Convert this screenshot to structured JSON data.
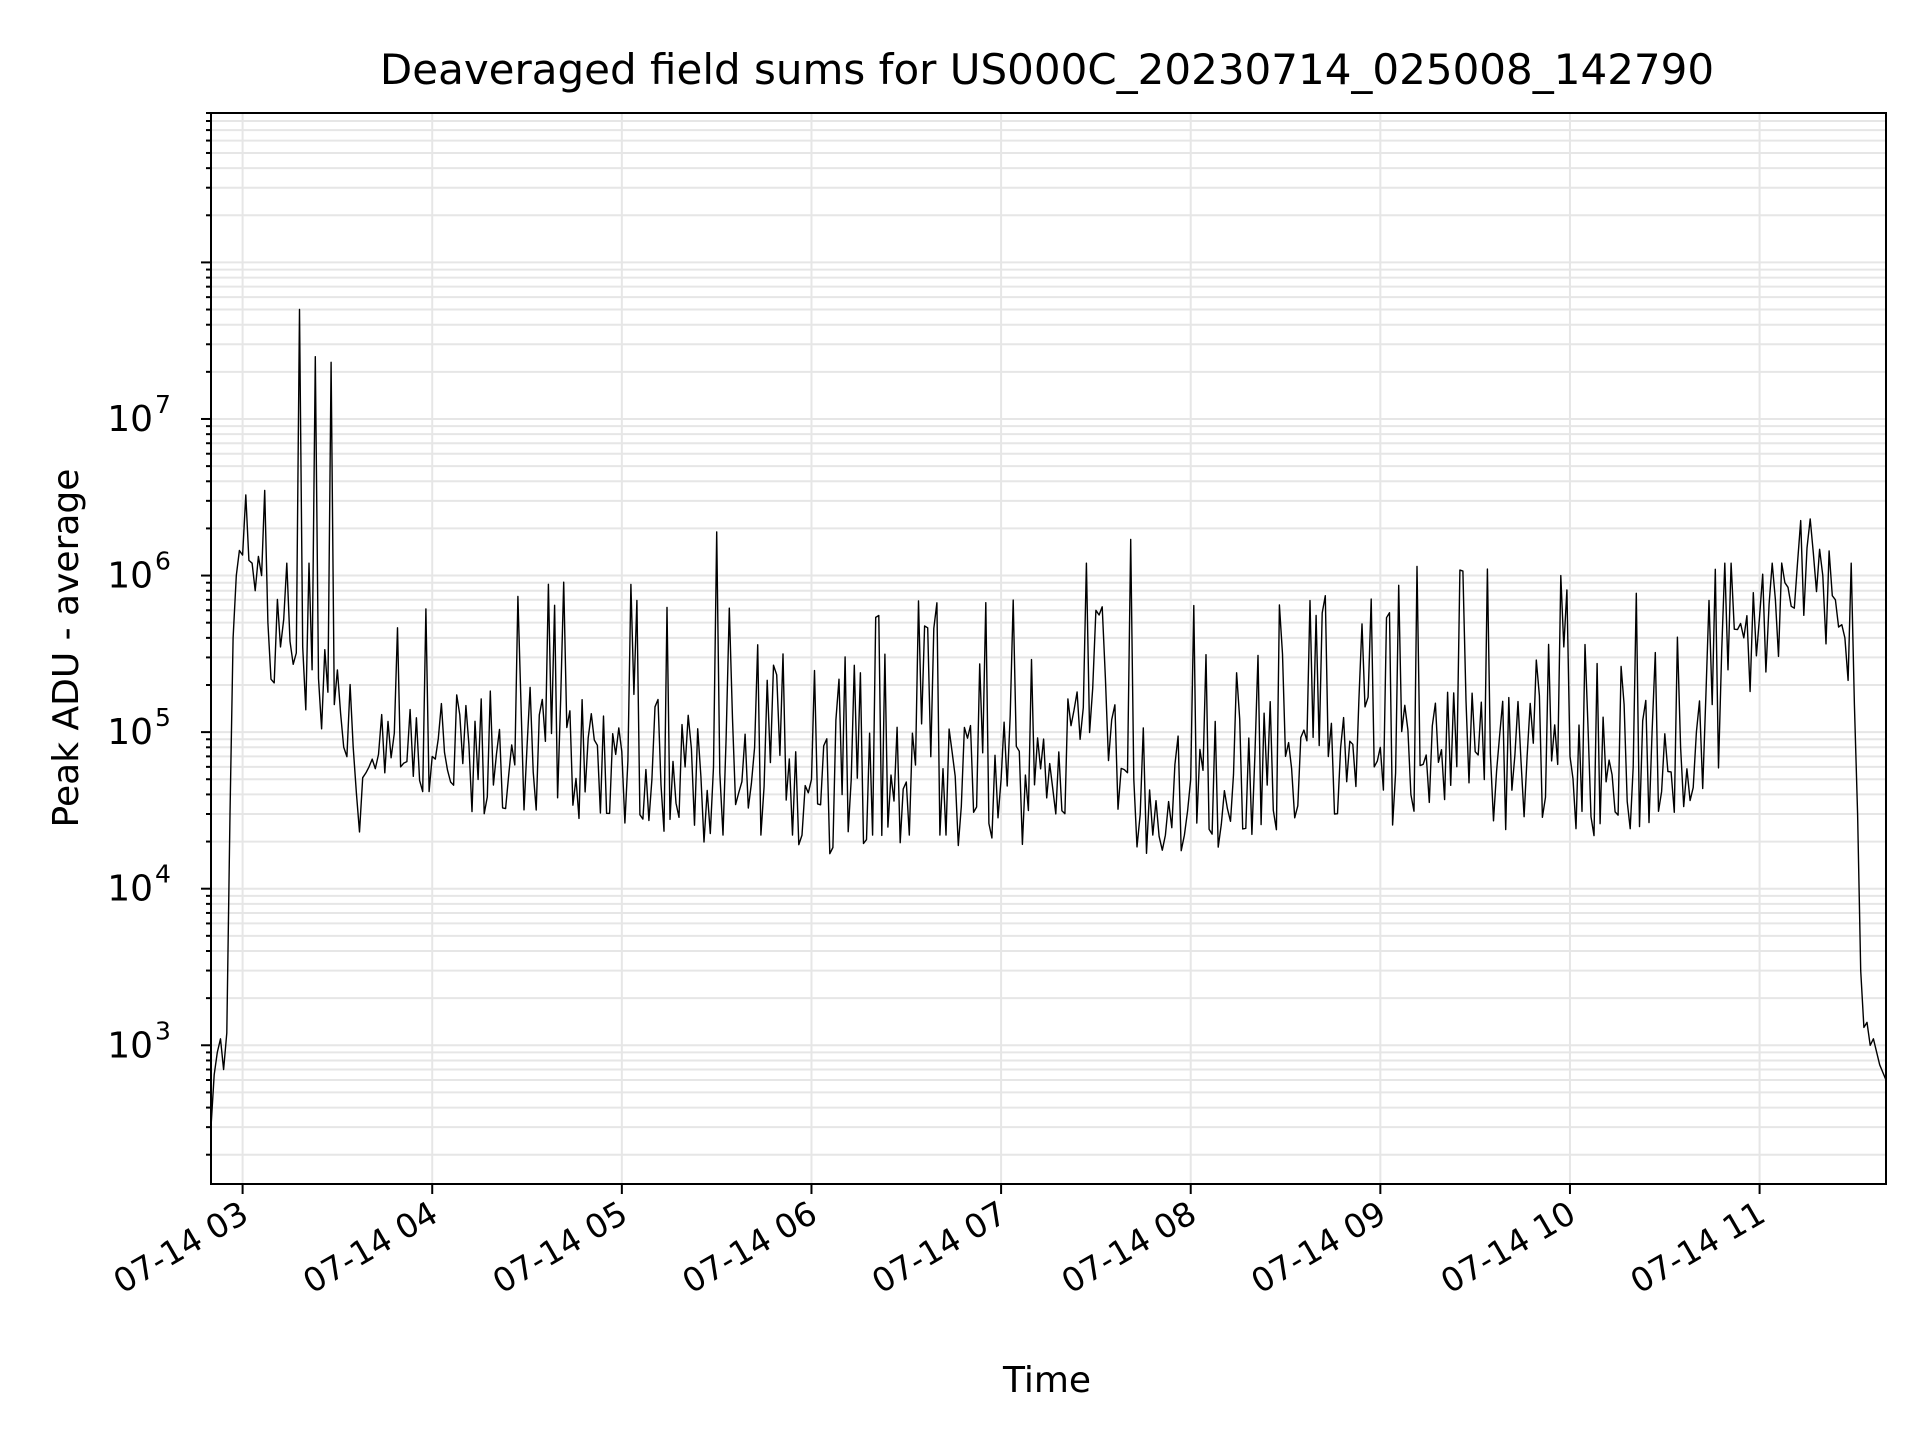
{
  "chart_data": {
    "type": "line",
    "title": "Deaveraged field sums for US000C_20230714_025008_142790",
    "xlabel": "Time",
    "ylabel": "Peak ADU - average",
    "y_scale": "log",
    "ylim": [
      130,
      900000000
    ],
    "xlim": [
      "2023-07-14T02:50:00",
      "2023-07-14T11:40:00"
    ],
    "grid": true,
    "line_color": "#000000",
    "grid_color": "#e6e6e6",
    "x_ticks": [
      {
        "value": "2023-07-14T03:00:00",
        "label": "07-14 03"
      },
      {
        "value": "2023-07-14T04:00:00",
        "label": "07-14 04"
      },
      {
        "value": "2023-07-14T05:00:00",
        "label": "07-14 05"
      },
      {
        "value": "2023-07-14T06:00:00",
        "label": "07-14 06"
      },
      {
        "value": "2023-07-14T07:00:00",
        "label": "07-14 07"
      },
      {
        "value": "2023-07-14T08:00:00",
        "label": "07-14 08"
      },
      {
        "value": "2023-07-14T09:00:00",
        "label": "07-14 09"
      },
      {
        "value": "2023-07-14T10:00:00",
        "label": "07-14 10"
      },
      {
        "value": "2023-07-14T11:00:00",
        "label": "07-14 11"
      }
    ],
    "y_ticks": [
      {
        "value": 1000,
        "base": "10",
        "exp": "3"
      },
      {
        "value": 10000,
        "base": "10",
        "exp": "4"
      },
      {
        "value": 100000,
        "base": "10",
        "exp": "5"
      },
      {
        "value": 1000000,
        "base": "10",
        "exp": "6"
      },
      {
        "value": 10000000,
        "base": "10",
        "exp": "7"
      }
    ],
    "series": [
      {
        "points": [
          [
            "2023-07-14T02:50:00",
            300
          ],
          [
            "2023-07-14T02:51:00",
            650
          ],
          [
            "2023-07-14T02:52:00",
            900
          ],
          [
            "2023-07-14T02:53:00",
            1100
          ],
          [
            "2023-07-14T02:54:00",
            700
          ],
          [
            "2023-07-14T02:55:00",
            1200
          ],
          [
            "2023-07-14T02:56:00",
            30000
          ],
          [
            "2023-07-14T02:57:00",
            400000
          ],
          [
            "2023-07-14T02:58:00",
            1000000
          ],
          [
            "2023-07-14T03:00:00",
            1350000
          ],
          [
            "2023-07-14T03:02:00",
            1250000
          ],
          [
            "2023-07-14T03:04:00",
            800000
          ],
          [
            "2023-07-14T03:06:00",
            1000000
          ],
          [
            "2023-07-14T03:07:00",
            3500000
          ],
          [
            "2023-07-14T03:08:00",
            500000
          ],
          [
            "2023-07-14T03:12:00",
            350000
          ],
          [
            "2023-07-14T03:15:00",
            380000
          ],
          [
            "2023-07-14T03:17:00",
            320000
          ],
          [
            "2023-07-14T03:18:00",
            50000000
          ],
          [
            "2023-07-14T03:19:00",
            350000
          ],
          [
            "2023-07-14T03:22:00",
            250000
          ],
          [
            "2023-07-14T03:23:00",
            25000000
          ],
          [
            "2023-07-14T03:24:00",
            220000
          ],
          [
            "2023-07-14T03:27:00",
            180000
          ],
          [
            "2023-07-14T03:28:00",
            23000000
          ],
          [
            "2023-07-14T03:29:00",
            150000
          ],
          [
            "2023-07-14T03:35:00",
            80000
          ],
          [
            "2023-07-14T03:40:00",
            60000
          ],
          [
            "2023-07-14T03:45:00",
            55000
          ],
          [
            "2023-07-14T03:50:00",
            60000
          ],
          [
            "2023-07-14T04:00:00",
            70000
          ],
          [
            "2023-07-14T04:30:00",
            80000
          ],
          [
            "2023-07-14T05:00:00",
            75000
          ],
          [
            "2023-07-14T05:20:00",
            60000
          ],
          [
            "2023-07-14T05:29:00",
            60000
          ],
          [
            "2023-07-14T05:30:00",
            1900000
          ],
          [
            "2023-07-14T05:31:00",
            55000
          ],
          [
            "2023-07-14T05:45:00",
            45000
          ],
          [
            "2023-07-14T06:00:00",
            50000
          ],
          [
            "2023-07-14T06:30:00",
            48000
          ],
          [
            "2023-07-14T07:00:00",
            50000
          ],
          [
            "2023-07-14T07:25:00",
            90000
          ],
          [
            "2023-07-14T07:30:00",
            600000
          ],
          [
            "2023-07-14T07:35:00",
            120000
          ],
          [
            "2023-07-14T07:40:00",
            55000
          ],
          [
            "2023-07-14T07:41:00",
            1700000
          ],
          [
            "2023-07-14T07:42:00",
            50000
          ],
          [
            "2023-07-14T08:00:00",
            50000
          ],
          [
            "2023-07-14T08:30:00",
            70000
          ],
          [
            "2023-07-14T09:00:00",
            80000
          ],
          [
            "2023-07-14T09:30:00",
            75000
          ],
          [
            "2023-07-14T10:00:00",
            70000
          ],
          [
            "2023-07-14T10:20:00",
            60000
          ],
          [
            "2023-07-14T10:35:00",
            80000
          ],
          [
            "2023-07-14T10:40:00",
            100000
          ],
          [
            "2023-07-14T10:45:00",
            150000
          ],
          [
            "2023-07-14T10:50:00",
            250000
          ],
          [
            "2023-07-14T10:55:00",
            400000
          ],
          [
            "2023-07-14T11:00:00",
            550000
          ],
          [
            "2023-07-14T11:05:00",
            700000
          ],
          [
            "2023-07-14T11:08:00",
            900000
          ],
          [
            "2023-07-14T11:12:00",
            1200000
          ],
          [
            "2023-07-14T11:15:00",
            1500000
          ],
          [
            "2023-07-14T11:16:00",
            2300000
          ],
          [
            "2023-07-14T11:17:00",
            1400000
          ],
          [
            "2023-07-14T11:20:00",
            1000000
          ],
          [
            "2023-07-14T11:24:00",
            700000
          ],
          [
            "2023-07-14T11:27:00",
            400000
          ],
          [
            "2023-07-14T11:30:00",
            150000
          ],
          [
            "2023-07-14T11:31:00",
            30000
          ],
          [
            "2023-07-14T11:32:00",
            3000
          ],
          [
            "2023-07-14T11:33:00",
            1300
          ],
          [
            "2023-07-14T11:34:00",
            1400
          ],
          [
            "2023-07-14T11:35:00",
            1000
          ],
          [
            "2023-07-14T11:36:00",
            1100
          ],
          [
            "2023-07-14T11:38:00",
            750
          ],
          [
            "2023-07-14T11:40:00",
            600
          ]
        ]
      }
    ]
  }
}
